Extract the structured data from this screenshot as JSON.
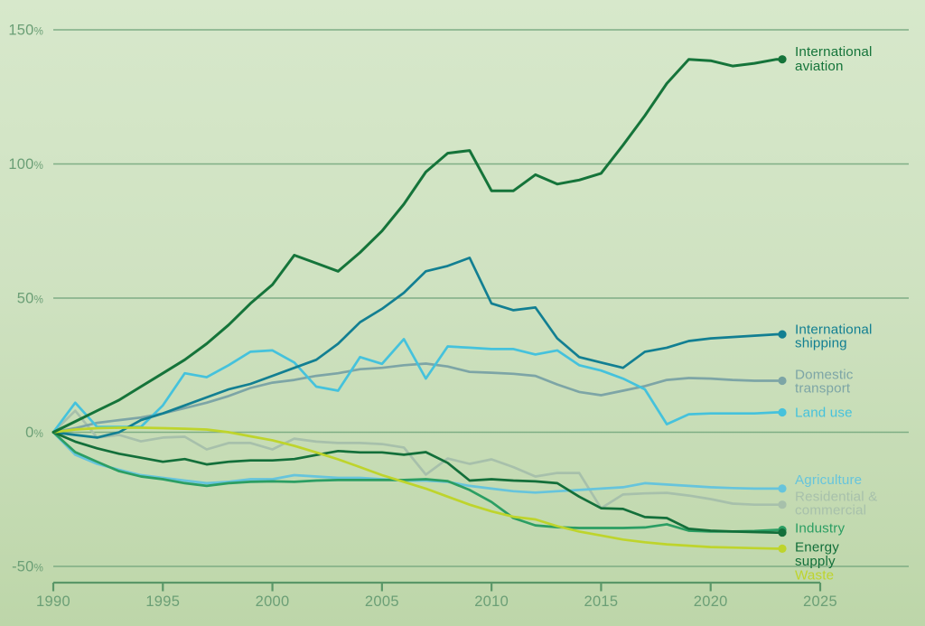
{
  "chart_data": {
    "type": "line",
    "title": "",
    "unit": "%",
    "x": [
      1990,
      1991,
      1992,
      1993,
      1994,
      1995,
      1996,
      1997,
      1998,
      1999,
      2000,
      2001,
      2002,
      2003,
      2004,
      2005,
      2006,
      2007,
      2008,
      2009,
      2010,
      2011,
      2012,
      2013,
      2014,
      2015,
      2016,
      2017,
      2018,
      2019,
      2020,
      2021,
      2022,
      2023
    ],
    "x_axis": {
      "range": [
        1990,
        2025
      ],
      "ticks": [
        1990,
        1995,
        2000,
        2005,
        2010,
        2015,
        2020,
        2025
      ]
    },
    "y_axis": {
      "range": [
        -50,
        150
      ],
      "ticks": [
        150,
        100,
        50,
        0,
        -50
      ],
      "unit": "%",
      "gridlines": true
    },
    "legend_position": "right",
    "series": [
      {
        "name": "International aviation",
        "label_lines": [
          "International",
          "aviation"
        ],
        "color": "#15743a",
        "values": [
          0,
          4,
          8,
          12,
          17,
          22,
          27,
          33,
          40,
          48,
          55,
          66,
          63,
          60,
          67,
          75,
          85,
          97,
          104,
          105,
          90,
          90,
          96,
          92.5,
          94,
          96.5,
          107,
          118,
          130,
          139,
          138.5,
          136.5,
          137.5,
          139
        ]
      },
      {
        "name": "International shipping",
        "label_lines": [
          "International",
          "shipping"
        ],
        "color": "#127f92",
        "values": [
          0,
          -1,
          -2,
          0,
          4.5,
          7,
          10,
          13,
          16,
          18,
          21,
          24,
          27,
          33,
          41,
          46,
          52,
          60,
          62,
          65,
          48,
          45.5,
          46.5,
          35,
          28,
          26,
          24,
          30,
          31.5,
          34,
          35,
          35.5,
          36,
          36.5
        ]
      },
      {
        "name": "Domestic transport",
        "label_lines": [
          "Domestic",
          "transport"
        ],
        "color": "#7da5a6",
        "values": [
          0,
          1.5,
          3.5,
          4.5,
          5.5,
          7,
          9,
          11,
          13.5,
          16.5,
          18.5,
          19.5,
          21,
          22,
          23.5,
          24,
          25,
          25.6,
          24.5,
          22.5,
          22.2,
          21.8,
          21,
          17.8,
          15,
          13.8,
          15.5,
          17.2,
          19.5,
          20.2,
          20,
          19.5,
          19.2,
          19.2
        ]
      },
      {
        "name": "Land use",
        "label_lines": [
          "Land use"
        ],
        "color": "#45c2dc",
        "values": [
          0,
          11,
          2,
          2,
          2,
          10,
          22,
          20.5,
          25,
          30,
          30.5,
          26,
          17,
          15.5,
          28,
          25.5,
          34.7,
          20,
          32,
          31.5,
          31,
          31,
          29,
          30.5,
          25,
          23,
          20,
          16,
          3,
          6.7,
          7,
          7,
          7,
          7.4
        ]
      },
      {
        "name": "Agriculture",
        "label_lines": [
          "Agriculture"
        ],
        "color": "#66c4dc",
        "values": [
          0,
          -8.4,
          -11.8,
          -14,
          -16,
          -17,
          -18,
          -19,
          -18.5,
          -17.5,
          -17.5,
          -16,
          -16.5,
          -17,
          -17,
          -17.5,
          -18,
          -18,
          -18.5,
          -20,
          -21,
          -22,
          -22.5,
          -22,
          -21.5,
          -21,
          -20.5,
          -19,
          -19.5,
          -20,
          -20.5,
          -20.8,
          -21,
          -21
        ]
      },
      {
        "name": "Residential & commercial",
        "label_lines": [
          "Residential &",
          "commercial"
        ],
        "color": "#a7c0ab",
        "values": [
          0,
          8,
          -2,
          -1,
          -3.4,
          -2,
          -1.7,
          -6.4,
          -4,
          -4,
          -6.4,
          -2.4,
          -3.5,
          -4,
          -4,
          -4.4,
          -5.7,
          -15.8,
          -9.8,
          -11.8,
          -10.1,
          -13,
          -16.5,
          -15.2,
          -15.2,
          -28.3,
          -23.2,
          -22.8,
          -22.6,
          -23.6,
          -24.9,
          -26.6,
          -27,
          -27
        ]
      },
      {
        "name": "Industry",
        "label_lines": [
          "Industry"
        ],
        "color": "#2b9e63",
        "values": [
          0,
          -7.4,
          -11,
          -14.5,
          -16.5,
          -17.5,
          -19,
          -20,
          -19,
          -18.5,
          -18.3,
          -18.5,
          -18,
          -17.8,
          -17.8,
          -17.8,
          -17.8,
          -17.5,
          -18.2,
          -21.5,
          -26,
          -32,
          -34.7,
          -35.4,
          -35.7,
          -35.7,
          -35.7,
          -35.5,
          -34.3,
          -36.7,
          -37,
          -37,
          -36.8,
          -36.4
        ]
      },
      {
        "name": "Energy supply",
        "label_lines": [
          "Energy",
          "supply"
        ],
        "color": "#136f3a",
        "values": [
          0,
          -3.5,
          -6,
          -8,
          -9.5,
          -11,
          -10,
          -12,
          -11,
          -10.5,
          -10.5,
          -10,
          -8.5,
          -7,
          -7.5,
          -7.5,
          -8.4,
          -7.4,
          -11.4,
          -18,
          -17.5,
          -18,
          -18.3,
          -19,
          -24,
          -28.3,
          -28.6,
          -31.6,
          -32,
          -36,
          -36.7,
          -37,
          -37.2,
          -37.4
        ]
      },
      {
        "name": "Waste",
        "label_lines": [
          "Waste"
        ],
        "color": "#bed42c",
        "values": [
          0,
          1,
          1.5,
          1.7,
          1.7,
          1.5,
          1.3,
          1,
          0,
          -1.5,
          -3,
          -5.1,
          -7.5,
          -10.1,
          -13,
          -16,
          -18.5,
          -21,
          -24,
          -27,
          -29.5,
          -31.5,
          -32.5,
          -35,
          -37,
          -38.5,
          -40,
          -41,
          -41.8,
          -42.3,
          -42.8,
          -43,
          -43.2,
          -43.4
        ]
      }
    ]
  },
  "style": {
    "background_top": "#d7e8cb",
    "background_bottom": "#bdd6a9",
    "gridline_color": "#76a77e",
    "axis_color": "#5a9768",
    "tick_label_color": "#6b9f76"
  }
}
